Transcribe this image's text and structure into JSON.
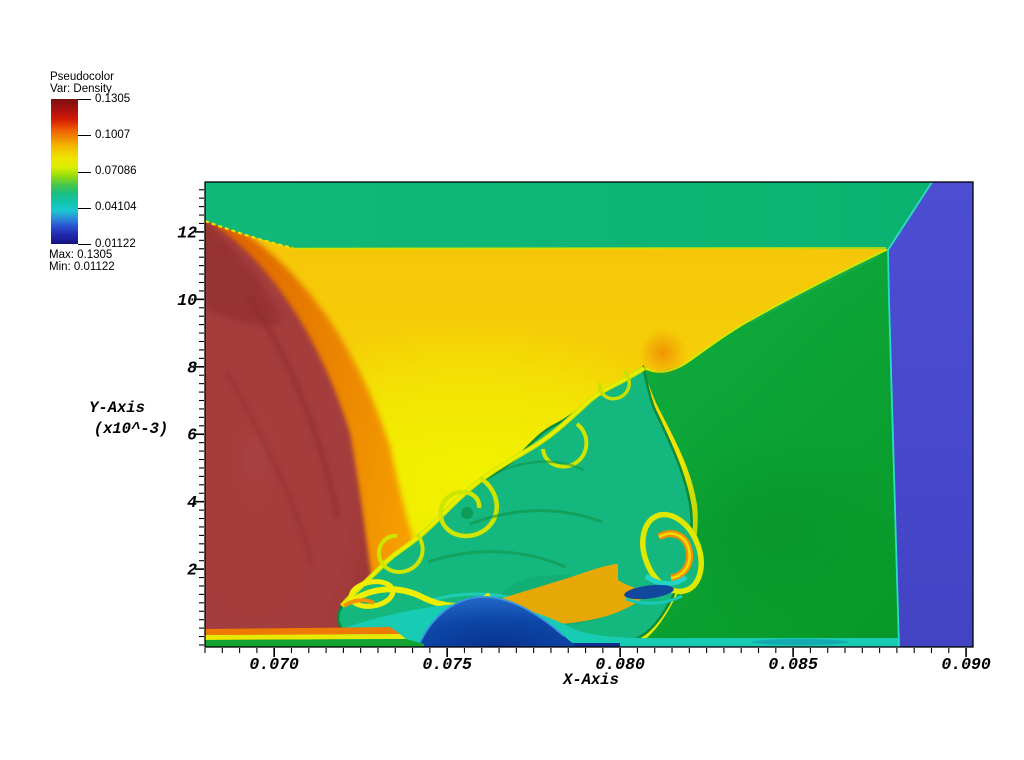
{
  "window": {
    "background": "#ffffff"
  },
  "legend": {
    "title": "Pseudocolor",
    "subtitle": "Var: Density",
    "ticks": [
      "0.1305",
      "0.1007",
      "0.07086",
      "0.04104",
      "0.01122"
    ],
    "max_label": "Max: 0.1305",
    "min_label": "Min: 0.01122",
    "colormap": "jet: dark red > red > orange > yellow > green > cyan > blue > navy",
    "position": "upper-left"
  },
  "chart_data": {
    "type": "heatmap",
    "variable": "Density",
    "plot_style": "pseudocolor (2D CFD shock / vortex field)",
    "xlabel": "X-Axis",
    "ylabel_line1": "Y-Axis",
    "ylabel_line2": "(x10^-3)",
    "x_tick_labels": [
      "0.070",
      "0.075",
      "0.080",
      "0.085",
      "0.090"
    ],
    "x_tick_values": [
      0.07,
      0.075,
      0.08,
      0.085,
      0.09
    ],
    "x_minor_step": 0.0005,
    "y_tick_labels": [
      "2",
      "4",
      "6",
      "8",
      "10",
      "12"
    ],
    "y_tick_values": [
      2,
      4,
      6,
      8,
      10,
      12
    ],
    "y_minor_step": 0.25,
    "xlim": [
      0.068,
      0.0902
    ],
    "ylim": [
      -0.31,
      13.48
    ],
    "value_range": [
      0.01122,
      0.1305
    ],
    "grid": false,
    "legend_position": "upper-left",
    "regions": [
      {
        "name": "post-shock top band",
        "color": "#0fb573",
        "extent": "full width, y = 12.2 to 13.5 (x10^-3)"
      },
      {
        "name": "incident dark-red wedge",
        "color": "#a43c3c",
        "extent": "left edge, below y = 12, widening toward bottom"
      },
      {
        "name": "orange compression band",
        "color": "#ee7a00",
        "extent": "between red wedge and amber region"
      },
      {
        "name": "amber region",
        "color": "#f6c30b",
        "extent": "large central-left region, brightening to yellow #eeee00 near vortices"
      },
      {
        "name": "oblique shock",
        "color": "#d9e800 line",
        "extent": "from (0.0877, 11.5) down-left to (0.0806, 5.6)"
      },
      {
        "name": "dark green region",
        "color": "#0a9b33",
        "extent": "right of oblique shock down to bottom"
      },
      {
        "name": "teal vortex pool with rolled-up Kelvin-Helmholtz curls",
        "color": "#14b77e",
        "extent": "x = 0.0735 to 0.0825, y = 0.5 to 5.5"
      },
      {
        "name": "vortex tongue with orange core",
        "color": "#f59000",
        "extent": "near (0.0805, 2.8)"
      },
      {
        "name": "right blue column",
        "color": "#4a4bcd",
        "extent": "x > 0.0880, full height"
      },
      {
        "name": "bottom cyan boundary layer",
        "color": "#18ccb4",
        "extent": "along bottom edge, x > 0.074"
      },
      {
        "name": "bottom navy patches",
        "color": "#0b2e8e",
        "extent": "humps near x = 0.0765 and streak near x = 0.0798"
      }
    ]
  }
}
